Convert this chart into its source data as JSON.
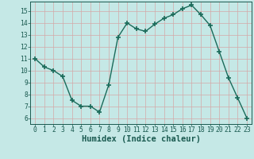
{
  "x": [
    0,
    1,
    2,
    3,
    4,
    5,
    6,
    7,
    8,
    9,
    10,
    11,
    12,
    13,
    14,
    15,
    16,
    17,
    18,
    19,
    20,
    21,
    22,
    23
  ],
  "y": [
    11,
    10.3,
    10,
    9.5,
    7.5,
    7,
    7,
    6.5,
    8.8,
    12.8,
    14,
    13.5,
    13.3,
    13.9,
    14.4,
    14.7,
    15.2,
    15.5,
    14.7,
    13.8,
    11.6,
    9.4,
    7.7,
    6
  ],
  "line_color": "#1a6b5a",
  "marker": "+",
  "marker_size": 4,
  "bg_color": "#c5e8e6",
  "grid_color": "#d4a8a8",
  "xlabel": "Humidex (Indice chaleur)",
  "xlim": [
    -0.5,
    23.5
  ],
  "ylim": [
    5.5,
    15.8
  ],
  "yticks": [
    6,
    7,
    8,
    9,
    10,
    11,
    12,
    13,
    14,
    15
  ],
  "xticks": [
    0,
    1,
    2,
    3,
    4,
    5,
    6,
    7,
    8,
    9,
    10,
    11,
    12,
    13,
    14,
    15,
    16,
    17,
    18,
    19,
    20,
    21,
    22,
    23
  ],
  "tick_fontsize": 5.8,
  "label_fontsize": 7.5,
  "linewidth": 1.0,
  "marker_linewidth": 1.2
}
